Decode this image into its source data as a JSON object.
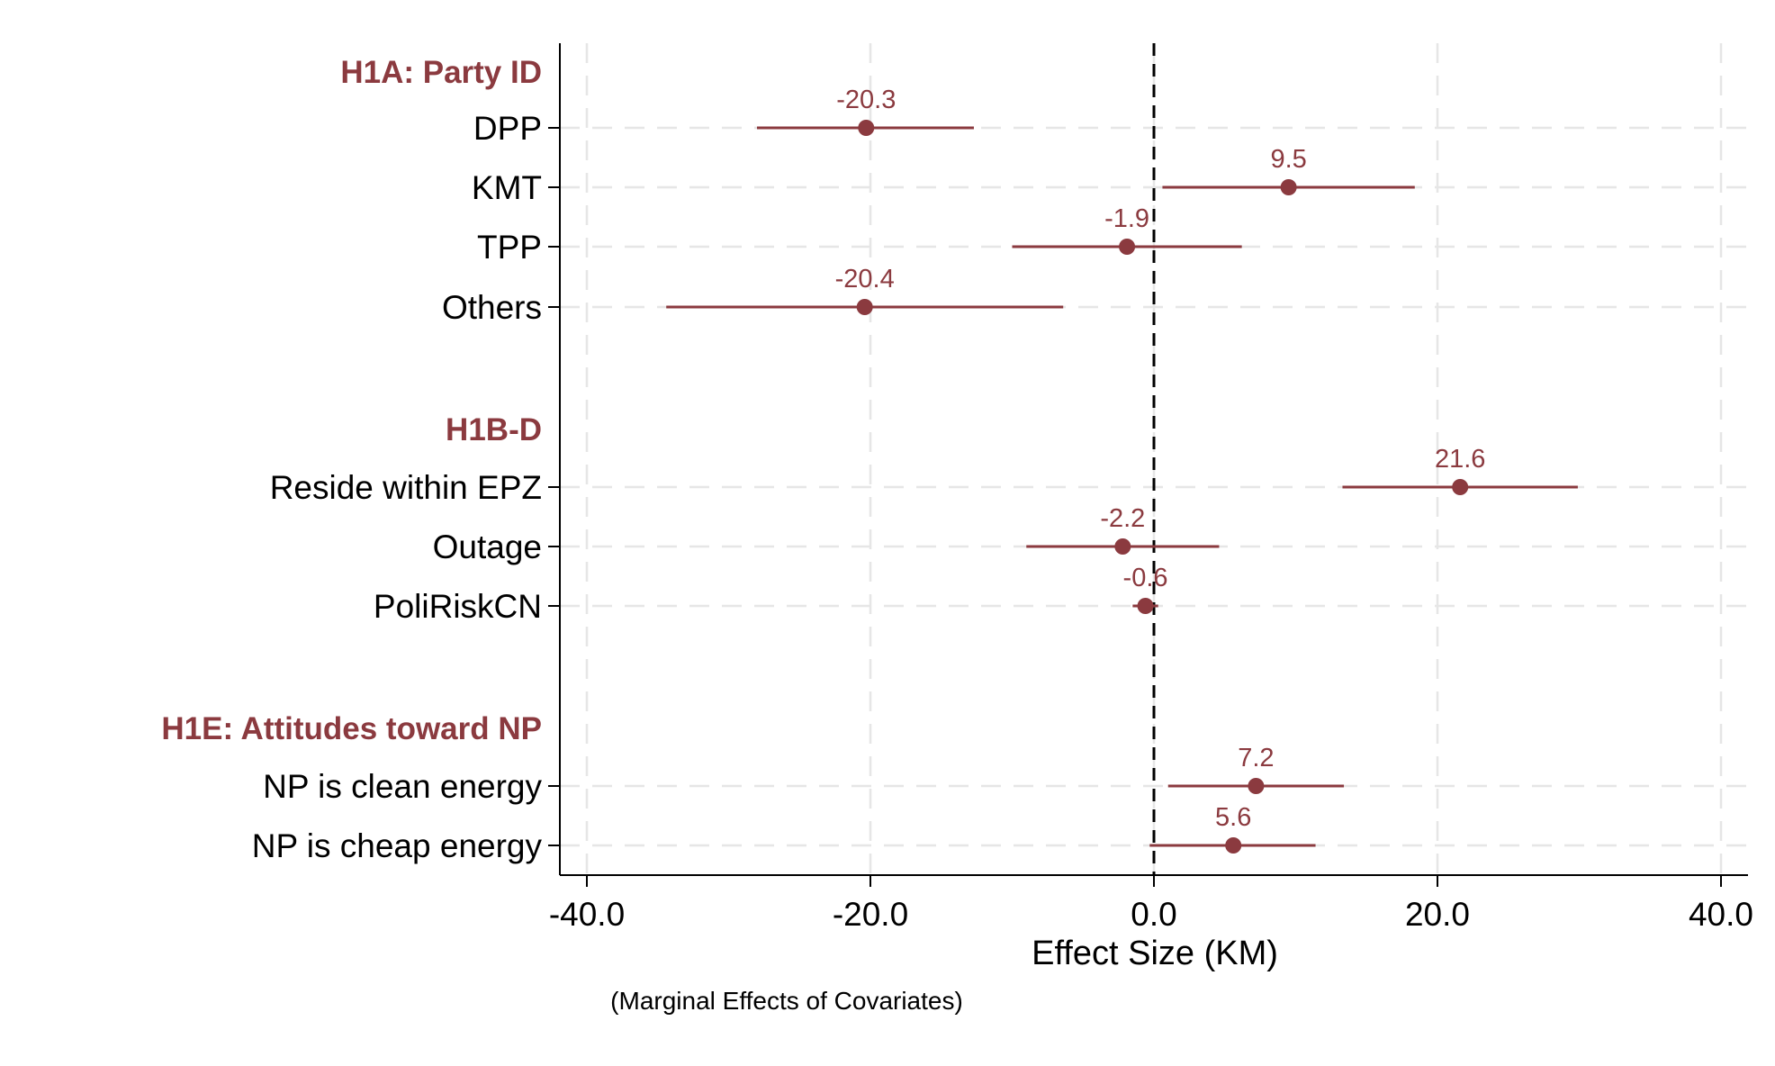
{
  "chart_data": {
    "type": "coefficient-plot",
    "xlabel": "Effect Size (KM)",
    "note": "(Marginal Effects of Covariates)",
    "xlim": [
      -41.5,
      41.5
    ],
    "xticks": [
      -40,
      -20,
      0,
      20,
      40
    ],
    "xtick_labels": [
      "-40.0",
      "-20.0",
      "0.0",
      "20.0",
      "40.0"
    ],
    "grid": true,
    "reference_line": 0,
    "colors": {
      "series": "#8b3a3f",
      "axis": "#000000",
      "grid": "#e6e6e6"
    },
    "groups": [
      {
        "title": "H1A: Party ID",
        "items": [
          {
            "label": "DPP",
            "estimate": -20.3,
            "ci_low": -28.0,
            "ci_high": -12.7,
            "value_label": "-20.3"
          },
          {
            "label": "KMT",
            "estimate": 9.5,
            "ci_low": 0.6,
            "ci_high": 18.4,
            "value_label": "9.5"
          },
          {
            "label": "TPP",
            "estimate": -1.9,
            "ci_low": -10.0,
            "ci_high": 6.2,
            "value_label": "-1.9"
          },
          {
            "label": "Others",
            "estimate": -20.4,
            "ci_low": -34.4,
            "ci_high": -6.4,
            "value_label": "-20.4"
          }
        ]
      },
      {
        "title": "H1B-D",
        "items": [
          {
            "label": "Reside within EPZ",
            "estimate": 21.6,
            "ci_low": 13.3,
            "ci_high": 29.9,
            "value_label": "21.6"
          },
          {
            "label": "Outage",
            "estimate": -2.2,
            "ci_low": -9.0,
            "ci_high": 4.6,
            "value_label": "-2.2"
          },
          {
            "label": "PoliRiskCN",
            "estimate": -0.6,
            "ci_low": -1.5,
            "ci_high": 0.3,
            "value_label": "-0.6"
          }
        ]
      },
      {
        "title": "H1E: Attitudes toward NP",
        "items": [
          {
            "label": "NP is clean energy",
            "estimate": 7.2,
            "ci_low": 1.0,
            "ci_high": 13.4,
            "value_label": "7.2"
          },
          {
            "label": "NP is cheap energy",
            "estimate": 5.6,
            "ci_low": -0.3,
            "ci_high": 11.4,
            "value_label": "5.6"
          }
        ]
      }
    ]
  }
}
